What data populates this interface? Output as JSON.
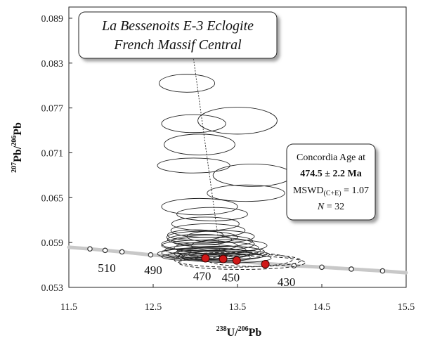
{
  "chart_data": {
    "type": "scatter",
    "title_lines": [
      "La Bessenoits E-3 Eclogite",
      "French Massif Central"
    ],
    "xlabel": {
      "sup1": "238",
      "el1": "U/",
      "sup2": "206",
      "el2": "Pb"
    },
    "ylabel": {
      "sup1": "207",
      "el1": "Pb/",
      "sup2": "206",
      "el2": "Pb"
    },
    "xlim": [
      11.5,
      15.5
    ],
    "ylim": [
      0.053,
      0.0905
    ],
    "xticks": [
      "11.5",
      "12.5",
      "13.5",
      "14.5",
      "15.5"
    ],
    "yticks": [
      "0.053",
      "0.059",
      "0.065",
      "0.071",
      "0.077",
      "0.083",
      "0.089"
    ],
    "concordia": {
      "points": [
        {
          "x": 11.75,
          "y": 0.05815
        },
        {
          "x": 11.93,
          "y": 0.05795
        },
        {
          "x": 12.13,
          "y": 0.05775
        },
        {
          "x": 12.47,
          "y": 0.05735
        },
        {
          "x": 12.83,
          "y": 0.05705
        },
        {
          "x": 14.17,
          "y": 0.0559
        },
        {
          "x": 14.5,
          "y": 0.0557
        },
        {
          "x": 14.85,
          "y": 0.05545
        },
        {
          "x": 15.22,
          "y": 0.0552
        }
      ],
      "age_labels": [
        {
          "text": "510",
          "x": 11.95,
          "y": 0.05505
        },
        {
          "text": "490",
          "x": 12.5,
          "y": 0.0548
        },
        {
          "text": "470",
          "x": 13.08,
          "y": 0.054
        },
        {
          "text": "450",
          "x": 13.42,
          "y": 0.0538
        },
        {
          "text": "430",
          "x": 14.08,
          "y": 0.0532
        }
      ]
    },
    "red_points": [
      {
        "x": 13.12,
        "y": 0.0569
      },
      {
        "x": 13.33,
        "y": 0.0568
      },
      {
        "x": 13.49,
        "y": 0.0566
      },
      {
        "x": 13.83,
        "y": 0.0561
      }
    ],
    "ellipses": [
      {
        "x": 12.9,
        "y": 0.0803,
        "rx": 0.33,
        "ry": 0.0012
      },
      {
        "x": 12.98,
        "y": 0.0749,
        "rx": 0.38,
        "ry": 0.0012
      },
      {
        "x": 13.5,
        "y": 0.0753,
        "rx": 0.47,
        "ry": 0.0018
      },
      {
        "x": 13.05,
        "y": 0.0721,
        "rx": 0.42,
        "ry": 0.0014
      },
      {
        "x": 12.98,
        "y": 0.0693,
        "rx": 0.43,
        "ry": 0.001
      },
      {
        "x": 13.68,
        "y": 0.068,
        "rx": 0.47,
        "ry": 0.0015
      },
      {
        "x": 13.6,
        "y": 0.0656,
        "rx": 0.46,
        "ry": 0.0011
      },
      {
        "x": 13.05,
        "y": 0.0638,
        "rx": 0.45,
        "ry": 0.0011
      },
      {
        "x": 13.2,
        "y": 0.0628,
        "rx": 0.42,
        "ry": 0.0009
      },
      {
        "x": 13.12,
        "y": 0.0615,
        "rx": 0.4,
        "ry": 0.0009
      },
      {
        "x": 13.15,
        "y": 0.0606,
        "rx": 0.44,
        "ry": 0.0009
      },
      {
        "x": 13.08,
        "y": 0.0597,
        "rx": 0.42,
        "ry": 0.0008
      },
      {
        "x": 13.2,
        "y": 0.0592,
        "rx": 0.48,
        "ry": 0.0008
      },
      {
        "x": 13.05,
        "y": 0.0586,
        "rx": 0.45,
        "ry": 0.0007
      },
      {
        "x": 13.25,
        "y": 0.0583,
        "rx": 0.5,
        "ry": 0.0008
      },
      {
        "x": 13.12,
        "y": 0.058,
        "rx": 0.48,
        "ry": 0.0007
      },
      {
        "x": 13.3,
        "y": 0.0578,
        "rx": 0.52,
        "ry": 0.0007
      },
      {
        "x": 13.0,
        "y": 0.0576,
        "rx": 0.4,
        "ry": 0.0006
      },
      {
        "x": 13.2,
        "y": 0.0575,
        "rx": 0.45,
        "ry": 0.0007
      },
      {
        "x": 13.4,
        "y": 0.0574,
        "rx": 0.48,
        "ry": 0.0006
      },
      {
        "x": 13.1,
        "y": 0.0573,
        "rx": 0.42,
        "ry": 0.0006
      },
      {
        "x": 13.3,
        "y": 0.0572,
        "rx": 0.5,
        "ry": 0.0006
      },
      {
        "x": 12.95,
        "y": 0.0571,
        "rx": 0.35,
        "ry": 0.0005
      },
      {
        "x": 13.25,
        "y": 0.057,
        "rx": 0.4,
        "ry": 0.0006
      },
      {
        "x": 13.45,
        "y": 0.0569,
        "rx": 0.45,
        "ry": 0.0006
      },
      {
        "x": 13.15,
        "y": 0.0588,
        "rx": 0.55,
        "ry": 0.0009
      },
      {
        "x": 13.35,
        "y": 0.0579,
        "rx": 0.42,
        "ry": 0.0006
      },
      {
        "x": 13.05,
        "y": 0.0594,
        "rx": 0.38,
        "ry": 0.0007
      },
      {
        "x": 13.4,
        "y": 0.0586,
        "rx": 0.45,
        "ry": 0.0008
      },
      {
        "x": 13.0,
        "y": 0.06,
        "rx": 0.33,
        "ry": 0.0007
      },
      {
        "x": 13.3,
        "y": 0.0598,
        "rx": 0.4,
        "ry": 0.0008
      },
      {
        "x": 13.1,
        "y": 0.0575,
        "rx": 0.55,
        "ry": 0.0008
      }
    ],
    "dashed_ellipses": [
      {
        "x": 13.45,
        "y": 0.0567,
        "rx": 0.7,
        "ry": 0.001
      },
      {
        "x": 13.55,
        "y": 0.0563,
        "rx": 0.75,
        "ry": 0.0009
      },
      {
        "x": 13.7,
        "y": 0.0566,
        "rx": 0.55,
        "ry": 0.0008
      }
    ],
    "regression_line": [
      {
        "x": 12.97,
        "y": 0.0843
      },
      {
        "x": 13.29,
        "y": 0.058
      }
    ],
    "result_box": {
      "line1": "Concordia Age at",
      "line2": "474.5 ± 2.2 Ma",
      "line3_main": "MSWD",
      "line3_sub": "(C+E)",
      "line3_rest": " = 1.07",
      "line4_italic": "N",
      "line4_rest": " = 32"
    },
    "grid": false
  }
}
